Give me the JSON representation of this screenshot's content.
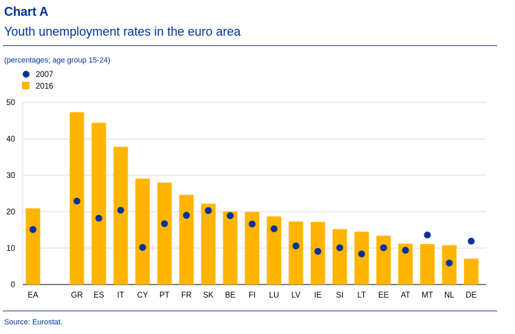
{
  "header": {
    "label": "Chart A",
    "title": "Youth unemployment rates in the euro area"
  },
  "subtitle": "(percentages; age group 15-24)",
  "source": "Source: Eurostat.",
  "colors": {
    "bar": "#ffb400",
    "dot": "#003299",
    "grid": "#d9d9d9",
    "text": "#003299"
  },
  "chart_data": {
    "type": "bar",
    "categories": [
      "EA",
      "GR",
      "ES",
      "IT",
      "CY",
      "PT",
      "FR",
      "SK",
      "BE",
      "FI",
      "LU",
      "LV",
      "IE",
      "SI",
      "LT",
      "EE",
      "AT",
      "MT",
      "NL",
      "DE"
    ],
    "series": [
      {
        "name": "2016",
        "kind": "bar",
        "values": [
          20.9,
          47.3,
          44.4,
          37.8,
          29.1,
          28.0,
          24.6,
          22.2,
          20.1,
          19.9,
          18.7,
          17.3,
          17.2,
          15.2,
          14.5,
          13.4,
          11.2,
          11.1,
          10.8,
          7.1
        ]
      },
      {
        "name": "2007",
        "kind": "dot",
        "values": [
          15.1,
          22.9,
          18.2,
          20.4,
          10.2,
          16.7,
          19.0,
          20.3,
          18.9,
          16.6,
          15.3,
          10.6,
          9.1,
          10.1,
          8.4,
          10.1,
          9.4,
          13.6,
          5.9,
          11.9
        ]
      }
    ],
    "yticks": [
      0,
      10,
      20,
      30,
      40,
      50
    ],
    "ylim": [
      0,
      50
    ],
    "grid": true,
    "legend_position": "top-left"
  }
}
